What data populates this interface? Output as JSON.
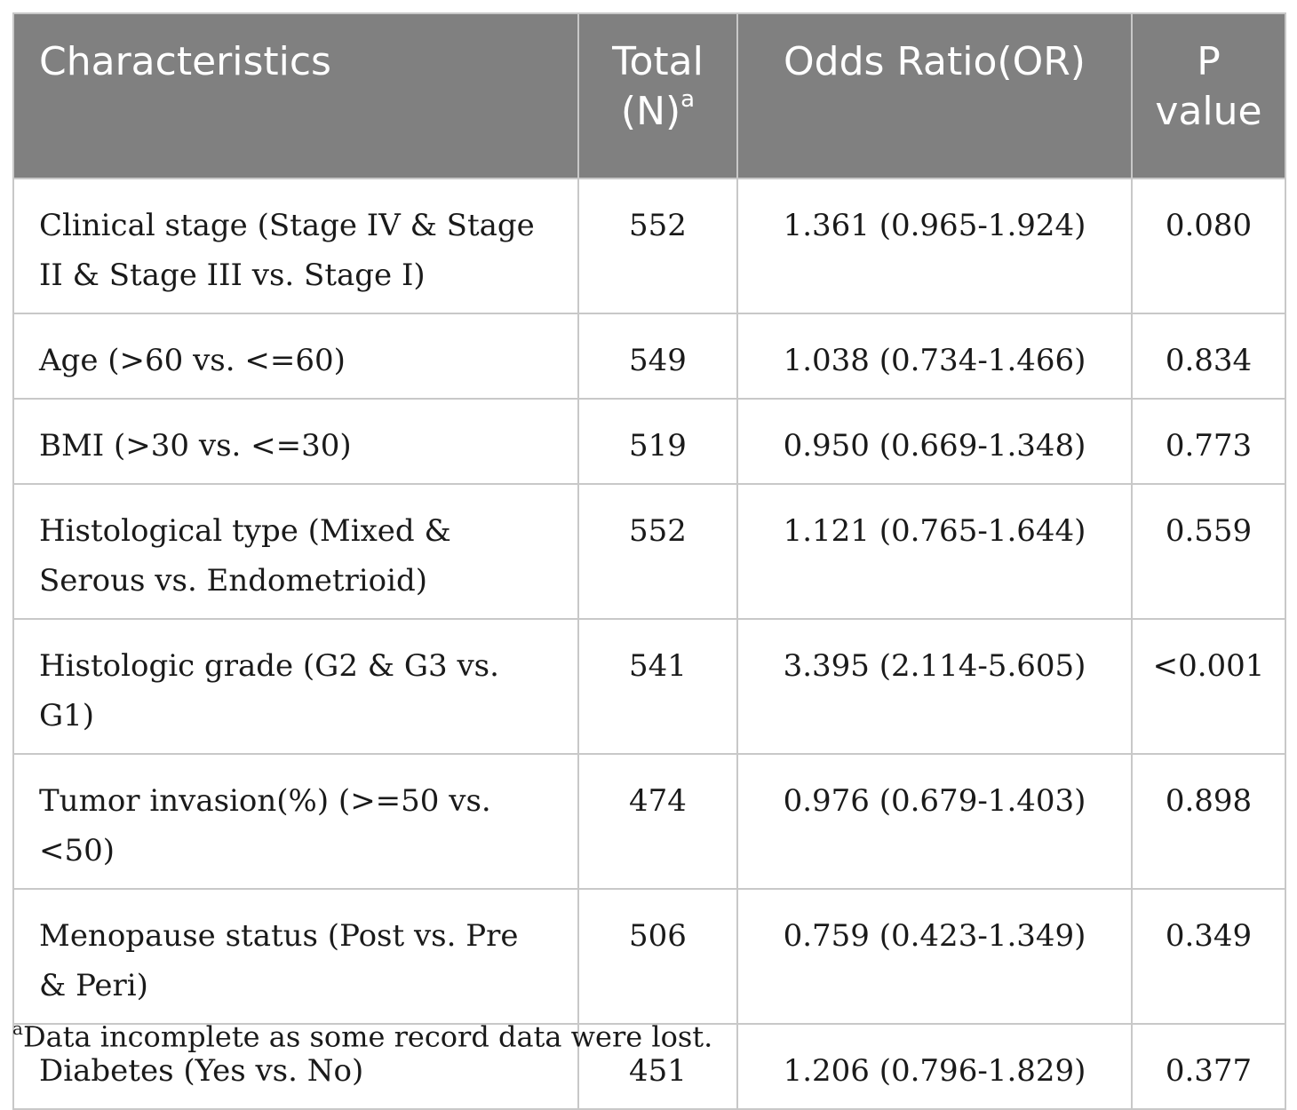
{
  "table": {
    "headers": {
      "characteristics": "Characteristics",
      "total_line1": "Total",
      "total_line2": "(N)",
      "total_sup": "a",
      "odds_ratio": "Odds Ratio(OR)",
      "p_line1": "P",
      "p_line2": "value"
    },
    "rows": [
      {
        "characteristic": "Clinical stage (Stage IV & Stage II & Stage III vs. Stage I)",
        "total": "552",
        "or": "1.361 (0.965-1.924)",
        "p": "0.080"
      },
      {
        "characteristic": "Age (>60 vs. <=60)",
        "total": "549",
        "or": "1.038 (0.734-1.466)",
        "p": "0.834"
      },
      {
        "characteristic": "BMI (>30 vs. <=30)",
        "total": "519",
        "or": "0.950 (0.669-1.348)",
        "p": "0.773"
      },
      {
        "characteristic": "Histological type (Mixed & Serous vs. Endometrioid)",
        "total": "552",
        "or": "1.121 (0.765-1.644)",
        "p": "0.559"
      },
      {
        "characteristic": "Histologic grade (G2 & G3 vs. G1)",
        "total": "541",
        "or": "3.395 (2.114-5.605)",
        "p": "<0.001"
      },
      {
        "characteristic": "Tumor invasion(%) (>=50 vs. <50)",
        "total": "474",
        "or": "0.976 (0.679-1.403)",
        "p": "0.898"
      },
      {
        "characteristic": "Menopause status (Post vs. Pre & Peri)",
        "total": "506",
        "or": "0.759 (0.423-1.349)",
        "p": "0.349"
      },
      {
        "characteristic": "Diabetes (Yes vs. No)",
        "total": "451",
        "or": "1.206 (0.796-1.829)",
        "p": "0.377"
      }
    ]
  },
  "footnote": {
    "marker": "a",
    "text": "Data incomplete as some record data were lost."
  },
  "colors": {
    "header_background": "#808080",
    "header_text": "#ffffff",
    "grid_lines": "#c8c8c8"
  }
}
